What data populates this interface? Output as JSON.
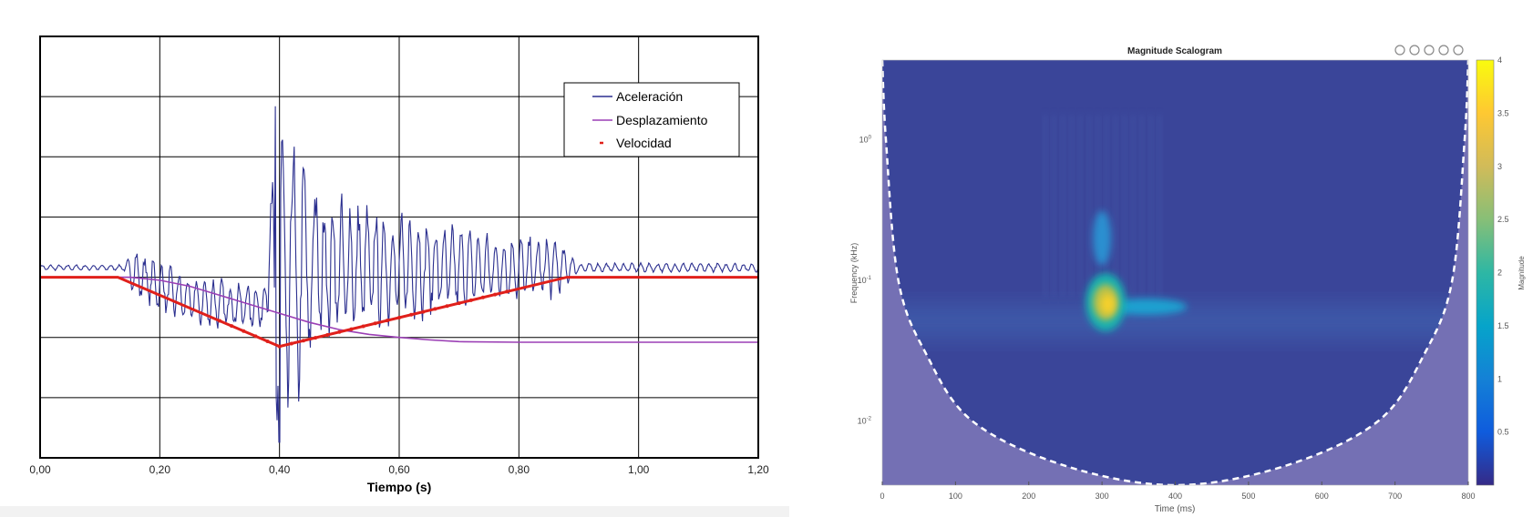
{
  "chart_data": [
    {
      "type": "line",
      "title": "",
      "xlabel": "Tiempo (s)",
      "ylabel": "",
      "xlim": [
        0,
        1.2
      ],
      "ylim": [
        -3,
        4
      ],
      "x_ticks": [
        "0,00",
        "0,20",
        "0,40",
        "0,60",
        "0,80",
        "1,00",
        "1,20"
      ],
      "x_tick_values": [
        0,
        0.2,
        0.4,
        0.6,
        0.8,
        1.0,
        1.2
      ],
      "y_grid_lines": 7,
      "grid": true,
      "legend_position": "top-right",
      "series": [
        {
          "name": "Aceleración",
          "color": "#2b2f8f",
          "kind": "noisy-oscillation",
          "baseline": 0.16,
          "envelope": [
            [
              0,
              0.05
            ],
            [
              0.14,
              0.05
            ],
            [
              0.16,
              0.45
            ],
            [
              0.38,
              0.45
            ],
            [
              0.39,
              2.8
            ],
            [
              0.42,
              2.8
            ],
            [
              0.46,
              1.4
            ],
            [
              0.6,
              1.0
            ],
            [
              0.75,
              0.6
            ],
            [
              0.86,
              0.55
            ],
            [
              0.9,
              0.08
            ],
            [
              1.2,
              0.08
            ]
          ],
          "trend": [
            [
              0,
              0
            ],
            [
              0.14,
              0
            ],
            [
              0.25,
              -0.55
            ],
            [
              0.37,
              -0.65
            ],
            [
              0.4,
              -0.2
            ],
            [
              0.46,
              0
            ],
            [
              1.2,
              0
            ]
          ],
          "frequency_hz": 70,
          "extremes": {
            "max": 2.84,
            "min": -2.74,
            "time_of_peak": 0.4
          }
        },
        {
          "name": "Desplazamiento",
          "color": "#9b3fb5",
          "points": [
            [
              0,
              0
            ],
            [
              0.15,
              0
            ],
            [
              0.2,
              -0.05
            ],
            [
              0.25,
              -0.15
            ],
            [
              0.3,
              -0.3
            ],
            [
              0.35,
              -0.45
            ],
            [
              0.4,
              -0.6
            ],
            [
              0.45,
              -0.75
            ],
            [
              0.5,
              -0.87
            ],
            [
              0.55,
              -0.95
            ],
            [
              0.6,
              -1.0
            ],
            [
              0.65,
              -1.04
            ],
            [
              0.7,
              -1.07
            ],
            [
              0.8,
              -1.08
            ],
            [
              1.2,
              -1.08
            ]
          ]
        },
        {
          "name": "Velocidad",
          "color": "#e0201b",
          "points": [
            [
              0,
              0
            ],
            [
              0.13,
              0
            ],
            [
              0.4,
              -1.15
            ],
            [
              0.88,
              0
            ],
            [
              1.2,
              0
            ]
          ]
        }
      ]
    },
    {
      "type": "heatmap",
      "title": "Magnitude Scalogram",
      "xlabel": "Time (ms)",
      "ylabel": "Frequency (kHz)",
      "xlim": [
        0,
        800
      ],
      "x_ticks": [
        "0",
        "100",
        "200",
        "300",
        "400",
        "500",
        "600",
        "700",
        "800"
      ],
      "x_tick_values": [
        0,
        100,
        200,
        300,
        400,
        500,
        600,
        700,
        800
      ],
      "y_scale": "log",
      "ylim": [
        0.0035,
        3.7
      ],
      "y_ticks": [
        {
          "base": "10",
          "exp": "0",
          "value": 1
        },
        {
          "base": "10",
          "exp": "-1",
          "value": 0.1
        },
        {
          "base": "10",
          "exp": "-2",
          "value": 0.01
        }
      ],
      "colorbar": {
        "label": "Magnitude",
        "range": [
          0,
          4
        ],
        "ticks": [
          "0.5",
          "1",
          "1.5",
          "2",
          "2.5",
          "3",
          "3.5",
          "4"
        ],
        "tick_values": [
          0.5,
          1,
          1.5,
          2,
          2.5,
          3,
          3.5,
          4
        ],
        "colormap": [
          "#352a87",
          "#0f5cdd",
          "#1481d6",
          "#06a4ca",
          "#2eb7a4",
          "#87bf77",
          "#d1bb59",
          "#fec832",
          "#f9fb0e"
        ]
      },
      "background_magnitude": 0.3,
      "features": [
        {
          "name": "main-peak",
          "time_ms": 305,
          "freq_khz": 0.07,
          "magnitude": 4.0
        },
        {
          "name": "tail",
          "time_ms": 380,
          "freq_khz": 0.065,
          "magnitude": 1.6
        },
        {
          "name": "upper-streak",
          "time_ms": 300,
          "freq_khz": 0.2,
          "magnitude": 1.5
        },
        {
          "name": "band",
          "time_ms": 400,
          "freq_khz": 0.05,
          "magnitude": 0.9
        }
      ],
      "cone_of_influence": [
        [
          0,
          3.7
        ],
        [
          5,
          1
        ],
        [
          22,
          0.1
        ],
        [
          60,
          0.03
        ],
        [
          123,
          0.01
        ],
        [
          250,
          0.0048
        ],
        [
          400,
          0.0035
        ]
      ],
      "toolbar": [
        "brush-icon",
        "pan-hand-icon",
        "zoom-in-icon",
        "zoom-out-icon",
        "home-icon"
      ]
    }
  ]
}
